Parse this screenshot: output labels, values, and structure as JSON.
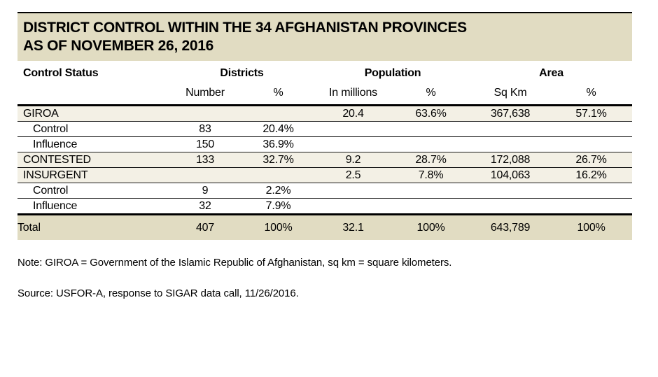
{
  "title": {
    "line1": "DISTRICT CONTROL WITHIN THE 34 AFGHANISTAN PROVINCES",
    "line2": "AS OF NOVEMBER 26, 2016"
  },
  "table": {
    "header": {
      "control_status": "Control Status",
      "districts": "Districts",
      "population": "Population",
      "area": "Area"
    },
    "subheader": [
      "Number",
      "%",
      "In millions",
      "%",
      "Sq Km",
      "%"
    ],
    "cell_names": [
      "districts-number-cell",
      "districts-pct-cell",
      "population-millions-cell",
      "population-pct-cell",
      "area-sqkm-cell",
      "area-pct-cell"
    ],
    "rows": [
      {
        "type": "group",
        "label": "GIROA",
        "cells": [
          "",
          "",
          "20.4",
          "63.6%",
          "367,638",
          "57.1%"
        ]
      },
      {
        "type": "sub",
        "label": "Control",
        "cells": [
          "83",
          "20.4%",
          "",
          "",
          "",
          ""
        ]
      },
      {
        "type": "sub",
        "label": "Influence",
        "cells": [
          "150",
          "36.9%",
          "",
          "",
          "",
          ""
        ]
      },
      {
        "type": "group",
        "label": "CONTESTED",
        "cells": [
          "133",
          "32.7%",
          "9.2",
          "28.7%",
          "172,088",
          "26.7%"
        ]
      },
      {
        "type": "group",
        "label": "INSURGENT",
        "cells": [
          "",
          "",
          "2.5",
          "7.8%",
          "104,063",
          "16.2%"
        ]
      },
      {
        "type": "sub",
        "label": "Control",
        "cells": [
          "9",
          "2.2%",
          "",
          "",
          "",
          ""
        ]
      },
      {
        "type": "sub",
        "label": "Influence",
        "cells": [
          "32",
          "7.9%",
          "",
          "",
          "",
          ""
        ]
      },
      {
        "type": "total",
        "label": "Total",
        "cells": [
          "407",
          "100%",
          "32.1",
          "100%",
          "643,789",
          "100%"
        ]
      }
    ]
  },
  "notes": {
    "note": "Note: GIROA = Government of the Islamic Republic of Afghanistan, sq km = square kilometers.",
    "source": "Source: USFOR-A, response to SIGAR data call, 11/26/2016."
  },
  "colors": {
    "band_background": "#e1dcc2",
    "group_row_background": "#f3f0e5",
    "border": "#000000",
    "text": "#000000"
  }
}
